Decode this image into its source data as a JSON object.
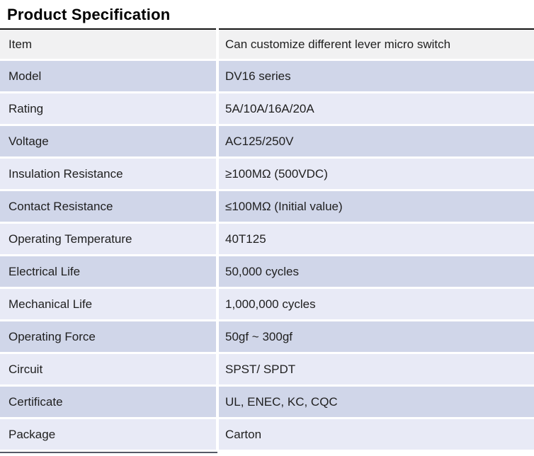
{
  "title": "Product Specification",
  "colors": {
    "header_row_bg": "#f1f1f2",
    "row_dark_bg": "#d0d6e9",
    "row_light_bg": "#e8eaf6",
    "top_border": "#141414",
    "bottom_line": "#555a66",
    "text": "#1f1f1f"
  },
  "table": {
    "rows": [
      {
        "label": "Item",
        "value": "Can customize different lever micro switch",
        "shade": "gray"
      },
      {
        "label": "Model",
        "value": "DV16 series",
        "shade": "dark"
      },
      {
        "label": "Rating",
        "value": "5A/10A/16A/20A",
        "shade": "light"
      },
      {
        "label": "Voltage",
        "value": "AC125/250V",
        "shade": "dark"
      },
      {
        "label": "Insulation Resistance",
        "value": "≥100MΩ (500VDC)",
        "shade": "light"
      },
      {
        "label": "Contact Resistance",
        "value": "≤100MΩ (Initial value)",
        "shade": "dark"
      },
      {
        "label": "Operating Temperature",
        "value": "40T125",
        "shade": "light"
      },
      {
        "label": "Electrical Life",
        "value": "50,000 cycles",
        "shade": "dark"
      },
      {
        "label": "Mechanical Life",
        "value": "1,000,000 cycles",
        "shade": "light"
      },
      {
        "label": "Operating Force",
        "value": "50gf ~ 300gf",
        "shade": "dark"
      },
      {
        "label": "Circuit",
        "value": "SPST/ SPDT",
        "shade": "light"
      },
      {
        "label": "Certificate",
        "value": "UL, ENEC, KC, CQC",
        "shade": "dark"
      },
      {
        "label": "Package",
        "value": "Carton",
        "shade": "light"
      }
    ]
  }
}
